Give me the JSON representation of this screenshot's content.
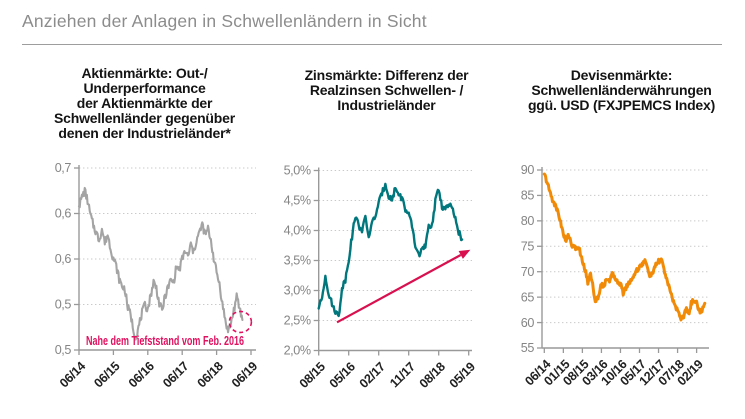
{
  "header": {
    "title": "Anziehen der Anlagen in Schwellenländern in Sicht"
  },
  "charts": [
    {
      "id": "equities",
      "title_text": "Aktienmärkte: Out-/\nUnderperformance\nder Aktienmärkte der\nSchwellenländer gegenüber\ndenen der Industrieländer*",
      "color": "#a4a4a4",
      "chart_type": "line",
      "y_tick_labels": [
        "0,7",
        "0,6",
        "0,6",
        "0,5",
        "0,5"
      ],
      "y_tick_values": [
        0.7,
        0.65,
        0.6,
        0.55,
        0.5
      ],
      "y_range": [
        0.5,
        0.7
      ],
      "x_tick_labels": [
        "06/14",
        "06/15",
        "06/16",
        "06/17",
        "06/18",
        "06/19"
      ],
      "x_tick_months": [
        0,
        12,
        24,
        36,
        48,
        60
      ],
      "x_range": [
        0,
        60
      ],
      "values": [
        0.658,
        0.668,
        0.675,
        0.664,
        0.648,
        0.637,
        0.629,
        0.621,
        0.633,
        0.618,
        0.627,
        0.612,
        0.601,
        0.592,
        0.578,
        0.57,
        0.567,
        0.547,
        0.539,
        0.522,
        0.514,
        0.528,
        0.541,
        0.549,
        0.545,
        0.56,
        0.575,
        0.568,
        0.551,
        0.543,
        0.559,
        0.568,
        0.577,
        0.574,
        0.592,
        0.588,
        0.6,
        0.609,
        0.602,
        0.616,
        0.607,
        0.621,
        0.629,
        0.638,
        0.626,
        0.633,
        0.621,
        0.601,
        0.585,
        0.573,
        0.551,
        0.533,
        0.521,
        0.529,
        0.544,
        0.558,
        0.546,
        0.533
      ],
      "annotation": {
        "text": "Nahe dem Tiefststand vom Feb. 2016",
        "color": "#e0115f"
      },
      "end_circle": true
    },
    {
      "id": "rates",
      "title_text": "Zinsmärkte: Differenz der\nRealzinsen Schwellen- /\nIndustrieländer",
      "color": "#00767d",
      "chart_type": "line",
      "y_tick_labels": [
        "5,0%",
        "4,5%",
        "4,0%",
        "3,5%",
        "3,0%",
        "2,5%",
        "2,0%"
      ],
      "y_tick_values": [
        5.0,
        4.5,
        4.0,
        3.5,
        3.0,
        2.5,
        2.0
      ],
      "y_range": [
        2.0,
        5.0
      ],
      "x_tick_labels": [
        "08/15",
        "05/16",
        "02/17",
        "11/17",
        "08/18",
        "05/19"
      ],
      "x_tick_months": [
        0,
        9,
        18,
        27,
        36,
        45
      ],
      "x_range": [
        0,
        46
      ],
      "values": [
        2.7,
        2.88,
        3.25,
        2.95,
        2.77,
        2.66,
        2.56,
        3.05,
        3.18,
        3.52,
        3.9,
        4.25,
        4.08,
        4.01,
        4.2,
        3.9,
        4.12,
        4.25,
        4.45,
        4.62,
        4.78,
        4.58,
        4.5,
        4.72,
        4.6,
        4.54,
        4.35,
        4.25,
        4.08,
        3.73,
        3.6,
        3.68,
        3.73,
        4.05,
        4.1,
        4.48,
        4.7,
        4.4,
        4.36,
        4.42,
        4.38,
        4.18,
        3.98,
        3.85
      ],
      "trend_arrow": {
        "from_month": 5.5,
        "from_value": 2.47,
        "to_month": 45.5,
        "to_value": 3.68,
        "color": "#d8104f"
      }
    },
    {
      "id": "fx",
      "title_text": "Devisenmärkte:\nSchwellenländerwährungen\nggü. USD (FXJPEMCS Index)",
      "color": "#f18a06",
      "chart_type": "line",
      "y_tick_labels": [
        "90",
        "85",
        "80",
        "75",
        "70",
        "65",
        "60",
        "55"
      ],
      "y_tick_values": [
        90,
        85,
        80,
        75,
        70,
        65,
        60,
        55
      ],
      "y_range": [
        55,
        90
      ],
      "x_tick_labels": [
        "06/14",
        "01/15",
        "08/15",
        "03/16",
        "10/16",
        "05/17",
        "12/17",
        "07/18",
        "02/19"
      ],
      "x_tick_months": [
        0,
        7,
        14,
        21,
        28,
        35,
        42,
        49,
        56
      ],
      "x_range": [
        0,
        59
      ],
      "values": [
        89.2,
        87.6,
        85.8,
        84.2,
        83.0,
        81.8,
        79.8,
        77.3,
        76.0,
        77.4,
        75.4,
        74.6,
        74.8,
        74.2,
        72.0,
        70.5,
        67.8,
        70.0,
        66.5,
        63.8,
        65.5,
        67.8,
        67.0,
        68.8,
        68.4,
        69.4,
        68.8,
        68.2,
        67.5,
        65.9,
        66.9,
        67.7,
        68.5,
        69.3,
        70.3,
        71.0,
        71.5,
        72.0,
        70.8,
        69.0,
        70.0,
        71.2,
        72.0,
        72.5,
        70.5,
        68.5,
        66.5,
        65.0,
        63.5,
        62.3,
        61.0,
        60.8,
        62.8,
        61.5,
        63.8,
        64.5,
        63.8,
        62.4,
        62.2,
        63.8
      ]
    }
  ]
}
